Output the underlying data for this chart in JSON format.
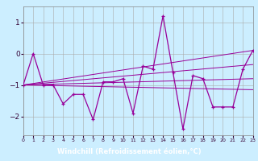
{
  "xlabel": "Windchill (Refroidissement éolien,°C)",
  "bg_color": "#cceeff",
  "xlabel_bg": "#660066",
  "xlabel_fg": "#ffffff",
  "line_color": "#990099",
  "grid_color": "#aaaaaa",
  "xlim": [
    0,
    23
  ],
  "ylim": [
    -2.6,
    1.5
  ],
  "xticks": [
    0,
    1,
    2,
    3,
    4,
    5,
    6,
    7,
    8,
    9,
    10,
    11,
    12,
    13,
    14,
    15,
    16,
    17,
    18,
    19,
    20,
    21,
    22,
    23
  ],
  "yticks": [
    -2,
    -1,
    0,
    1
  ],
  "main_data": {
    "x": [
      0,
      1,
      2,
      3,
      4,
      5,
      6,
      7,
      8,
      9,
      10,
      11,
      12,
      13,
      14,
      15,
      16,
      17,
      18,
      19,
      20,
      21,
      22,
      23
    ],
    "y": [
      -1.0,
      0.0,
      -1.0,
      -1.0,
      -1.6,
      -1.3,
      -1.3,
      -2.1,
      -0.9,
      -0.9,
      -0.8,
      -1.9,
      -0.4,
      -0.5,
      1.2,
      -0.6,
      -2.4,
      -0.7,
      -0.8,
      -1.7,
      -1.7,
      -1.7,
      -0.5,
      0.1
    ]
  },
  "trend1": {
    "x": [
      0,
      23
    ],
    "y": [
      -1.0,
      0.1
    ]
  },
  "trend2": {
    "x": [
      0,
      23
    ],
    "y": [
      -1.0,
      -1.15
    ]
  },
  "trend3": {
    "x": [
      0,
      23
    ],
    "y": [
      -1.0,
      -0.35
    ]
  },
  "trend4": {
    "x": [
      0,
      23
    ],
    "y": [
      -1.0,
      -0.8
    ]
  }
}
